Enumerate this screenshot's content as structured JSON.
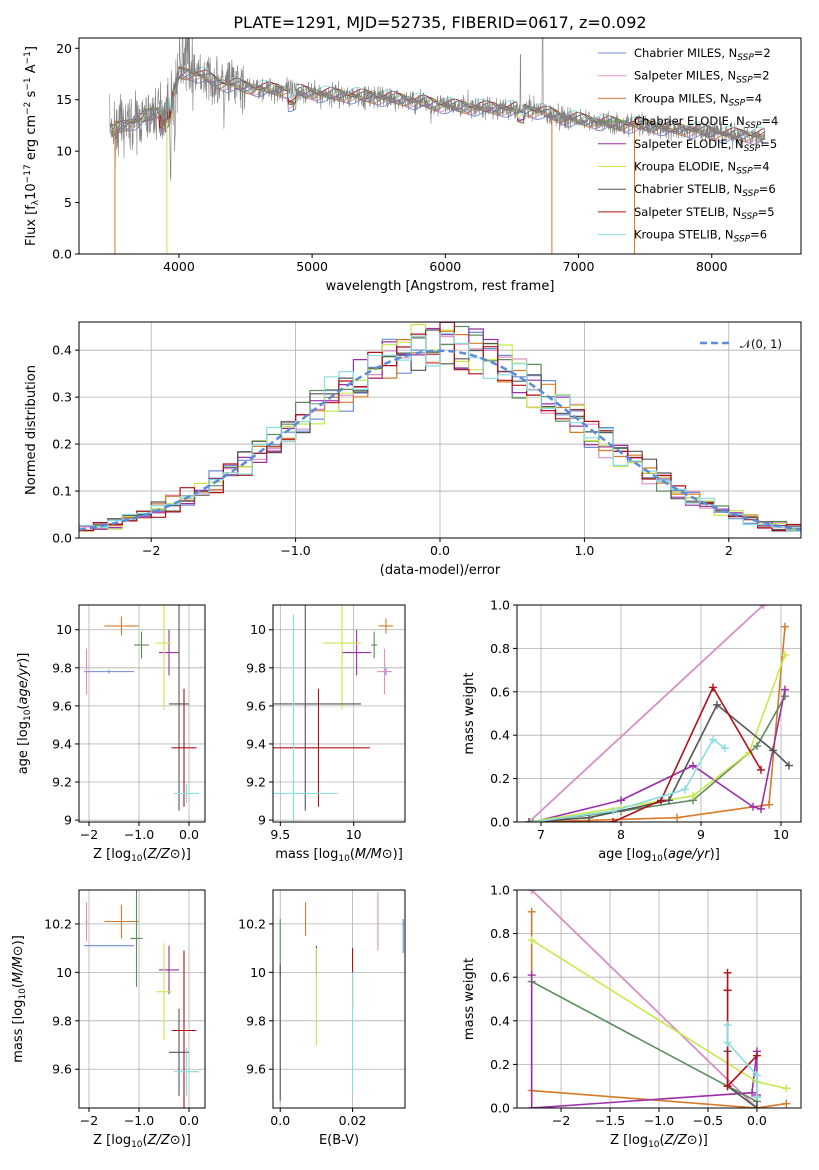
{
  "colors": {
    "Chabrier MILES": "#6b8cd6",
    "Salpeter MILES": "#e08fc2",
    "Kroupa MILES": "#d97a2a",
    "Chabrier ELODIE": "#5b8c5a",
    "Salpeter ELODIE": "#9b30a8",
    "Kroupa ELODIE": "#c8e84a",
    "Chabrier STELIB": "#555555",
    "Salpeter STELIB": "#b01018",
    "Kroupa STELIB": "#88dde0",
    "normal_curve": "#5b8bd8",
    "observed": "#808080"
  },
  "chart_data": [
    {
      "id": "spectrum",
      "type": "line",
      "title": "PLATE=1291, MJD=52735, FIBERID=0617, z=0.092",
      "xlabel": "wavelength [Angstrom, rest frame]",
      "ylabel": "Flux [f_λ10^-17 erg cm^-2 s^-1 A^-1]",
      "xlim": [
        3250,
        8670
      ],
      "ylim": [
        0,
        21
      ],
      "xticks": [
        4000,
        5000,
        6000,
        7000,
        8000
      ],
      "yticks": [
        0,
        5,
        10,
        15,
        20
      ],
      "grid": false,
      "legend_position": "top-right",
      "legend": [
        {
          "model": "Chabrier MILES",
          "text": "Chabrier MILES, N",
          "n": "2"
        },
        {
          "model": "Salpeter MILES",
          "text": "Salpeter MILES, N",
          "n": "2"
        },
        {
          "model": "Kroupa MILES",
          "text": "Kroupa MILES, N",
          "n": "4"
        },
        {
          "model": "Chabrier ELODIE",
          "text": "Chabrier ELODIE, N",
          "n": "4"
        },
        {
          "model": "Salpeter ELODIE",
          "text": "Salpeter ELODIE, N",
          "n": "5"
        },
        {
          "model": "Kroupa ELODIE",
          "text": "Kroupa ELODIE, N",
          "n": "4"
        },
        {
          "model": "Chabrier STELIB",
          "text": "Chabrier STELIB, N",
          "n": "6"
        },
        {
          "model": "Salpeter STELIB",
          "text": "Salpeter STELIB, N",
          "n": "5"
        },
        {
          "model": "Kroupa STELIB",
          "text": "Kroupa STELIB, N",
          "n": "6"
        }
      ],
      "legend_subscript": "SSP",
      "model_continuum": {
        "x": [
          3500,
          3550,
          3600,
          3700,
          3800,
          3900,
          3950,
          4000,
          4100,
          4200,
          4300,
          4400,
          4500,
          4700,
          4900,
          5100,
          5300,
          5500,
          5700,
          5900,
          6100,
          6300,
          6500,
          6700,
          6900,
          7100,
          7300,
          7500,
          7700,
          7900,
          8100,
          8300,
          8400
        ],
        "y": [
          11.8,
          12.3,
          12.6,
          13.0,
          13.6,
          14.2,
          15.0,
          17.5,
          17.6,
          17.2,
          16.6,
          16.5,
          16.2,
          16.0,
          15.8,
          15.5,
          15.4,
          15.2,
          15.0,
          14.6,
          14.3,
          14.2,
          14.1,
          13.9,
          13.2,
          12.9,
          12.6,
          12.5,
          12.2,
          12.0,
          11.6,
          11.5,
          11.5
        ]
      },
      "observed_range": [
        3480,
        8400
      ],
      "dropouts": [
        {
          "model": "Kroupa MILES",
          "x": 3520
        },
        {
          "model": "Kroupa ELODIE",
          "x": 3910
        },
        {
          "model": "Kroupa MILES",
          "x": 6800
        },
        {
          "model": "Kroupa MILES",
          "x": 7420
        }
      ]
    },
    {
      "id": "residuals",
      "type": "histogram",
      "xlabel": "(data-model)/error",
      "ylabel": "Normed distribution",
      "xlim": [
        -2.5,
        2.5
      ],
      "ylim": [
        0,
        0.46
      ],
      "xticks": [
        -2,
        -1,
        0,
        1,
        2
      ],
      "yticks": [
        0.0,
        0.1,
        0.2,
        0.3,
        0.4
      ],
      "grid": true,
      "legend_position": "top-right",
      "legend": [
        "𝒩(0, 1)"
      ],
      "bin_width": 0.1
    },
    {
      "id": "age-vs-Z",
      "type": "errorbar",
      "xlabel": "Z [log10(Z/Z⊙)]",
      "ylabel": "age  [log10(age/yr)]",
      "xlim": [
        -2.2,
        0.32
      ],
      "ylim": [
        8.99,
        10.13
      ],
      "xticks": [
        -2,
        -1,
        0
      ],
      "yticks": [
        9.0,
        9.2,
        9.4,
        9.6,
        9.8,
        10.0
      ],
      "grid": true,
      "points": [
        {
          "model": "Chabrier MILES",
          "x": -1.6,
          "y": 9.78,
          "xerr": 0.5,
          "yerr": 0.01
        },
        {
          "model": "Salpeter MILES",
          "x": -2.05,
          "y": 9.78,
          "xerr": 0.02,
          "yerr": 0.12
        },
        {
          "model": "Kroupa MILES",
          "x": -1.35,
          "y": 10.02,
          "xerr": 0.34,
          "yerr": 0.05
        },
        {
          "model": "Chabrier ELODIE",
          "x": -0.95,
          "y": 9.92,
          "xerr": 0.15,
          "yerr": 0.07
        },
        {
          "model": "Salpeter ELODIE",
          "x": -0.4,
          "y": 9.88,
          "xerr": 0.2,
          "yerr": 0.12
        },
        {
          "model": "Kroupa ELODIE",
          "x": -0.5,
          "y": 9.93,
          "xerr": 0.15,
          "yerr": 0.35
        },
        {
          "model": "Chabrier STELIB",
          "x": -0.2,
          "y": 9.61,
          "xerr": 0.2,
          "yerr": 0.56
        },
        {
          "model": "Salpeter STELIB",
          "x": -0.1,
          "y": 9.38,
          "xerr": 0.25,
          "yerr": 0.31
        },
        {
          "model": "Kroupa STELIB",
          "x": -0.05,
          "y": 9.14,
          "xerr": 0.25,
          "yerr": 0.05
        }
      ]
    },
    {
      "id": "age-vs-mass",
      "type": "errorbar",
      "xlabel": "mass [log10(M/M⊙)]",
      "ylabel": "",
      "xlim": [
        9.45,
        10.35
      ],
      "ylim": [
        8.99,
        10.13
      ],
      "xticks": [
        9.5,
        10.0
      ],
      "yticks": [
        9.0,
        9.2,
        9.4,
        9.6,
        9.8,
        10.0
      ],
      "grid": true,
      "points": [
        {
          "model": "Chabrier MILES",
          "x": 10.22,
          "y": 9.78,
          "xerr": 0.01,
          "yerr": 0.02
        },
        {
          "model": "Salpeter MILES",
          "x": 10.21,
          "y": 9.78,
          "xerr": 0.05,
          "yerr": 0.12
        },
        {
          "model": "Kroupa MILES",
          "x": 10.22,
          "y": 10.02,
          "xerr": 0.05,
          "yerr": 0.04
        },
        {
          "model": "Chabrier ELODIE",
          "x": 10.14,
          "y": 9.92,
          "xerr": 0.02,
          "yerr": 0.07
        },
        {
          "model": "Salpeter ELODIE",
          "x": 10.02,
          "y": 9.88,
          "xerr": 0.1,
          "yerr": 0.12
        },
        {
          "model": "Kroupa ELODIE",
          "x": 9.92,
          "y": 9.93,
          "xerr": 0.13,
          "yerr": 0.35
        },
        {
          "model": "Chabrier STELIB",
          "x": 9.67,
          "y": 9.61,
          "xerr": 0.38,
          "yerr": 0.56
        },
        {
          "model": "Salpeter STELIB",
          "x": 9.76,
          "y": 9.38,
          "xerr": 0.35,
          "yerr": 0.31
        },
        {
          "model": "Kroupa STELIB",
          "x": 9.59,
          "y": 9.14,
          "xerr": 0.3,
          "yerr": 0.94
        }
      ]
    },
    {
      "id": "weight-vs-age",
      "type": "line",
      "xlabel": "age  [log10(age/yr)]",
      "ylabel": "mass weight",
      "xlim": [
        6.7,
        10.25
      ],
      "ylim": [
        0,
        1
      ],
      "xticks": [
        7,
        8,
        9,
        10
      ],
      "yticks": [
        0.0,
        0.2,
        0.4,
        0.6,
        0.8,
        1.0
      ],
      "grid": true,
      "series": [
        {
          "model": "Chabrier MILES",
          "age": [
            6.85,
            9.78
          ],
          "weight": [
            0.0,
            1.0
          ]
        },
        {
          "model": "Salpeter MILES",
          "age": [
            6.85,
            9.78
          ],
          "weight": [
            0.0,
            1.0
          ]
        },
        {
          "model": "Kroupa MILES",
          "age": [
            6.9,
            8.7,
            9.85,
            10.05
          ],
          "weight": [
            0.0,
            0.02,
            0.08,
            0.9
          ]
        },
        {
          "model": "Chabrier ELODIE",
          "age": [
            6.9,
            8.0,
            8.9,
            9.7,
            10.05
          ],
          "weight": [
            0.0,
            0.05,
            0.1,
            0.35,
            0.58
          ]
        },
        {
          "model": "Salpeter ELODIE",
          "age": [
            6.9,
            8.0,
            8.9,
            9.65,
            9.75,
            10.05
          ],
          "weight": [
            0.0,
            0.1,
            0.26,
            0.07,
            0.06,
            0.61
          ]
        },
        {
          "model": "Kroupa ELODIE",
          "age": [
            6.85,
            8.9,
            9.6,
            10.05
          ],
          "weight": [
            0.0,
            0.12,
            0.32,
            0.77
          ]
        },
        {
          "model": "Chabrier STELIB",
          "age": [
            6.85,
            7.6,
            8.6,
            9.2,
            9.9,
            10.1
          ],
          "weight": [
            0.0,
            0.02,
            0.1,
            0.54,
            0.33,
            0.26
          ]
        },
        {
          "model": "Salpeter STELIB",
          "age": [
            6.9,
            7.9,
            8.5,
            9.15,
            9.75
          ],
          "weight": [
            0.0,
            0.0,
            0.1,
            0.62,
            0.24
          ]
        },
        {
          "model": "Kroupa STELIB",
          "age": [
            6.9,
            7.9,
            8.8,
            9.15,
            9.3
          ],
          "weight": [
            0.0,
            0.05,
            0.15,
            0.38,
            0.34
          ]
        }
      ]
    },
    {
      "id": "mass-vs-Z",
      "type": "errorbar",
      "xlabel": "Z [log10(Z/Z⊙)]",
      "ylabel": "mass [log10(M/M⊙)]",
      "xlim": [
        -2.2,
        0.32
      ],
      "ylim": [
        9.44,
        10.34
      ],
      "xticks": [
        -2,
        -1,
        0
      ],
      "yticks": [
        9.6,
        9.8,
        10.0,
        10.2
      ],
      "grid": true,
      "points": [
        {
          "model": "Chabrier MILES",
          "x": -1.6,
          "y": 10.11,
          "xerr": 0.5,
          "yerr": 0.0
        },
        {
          "model": "Salpeter MILES",
          "x": -2.05,
          "y": 10.21,
          "xerr": 0.02,
          "yerr": 0.08
        },
        {
          "model": "Kroupa MILES",
          "x": -1.35,
          "y": 10.21,
          "xerr": 0.34,
          "yerr": 0.07
        },
        {
          "model": "Chabrier ELODIE",
          "x": -1.05,
          "y": 10.14,
          "xerr": 0.12,
          "yerr": 0.2
        },
        {
          "model": "Salpeter ELODIE",
          "x": -0.4,
          "y": 10.01,
          "xerr": 0.2,
          "yerr": 0.1
        },
        {
          "model": "Kroupa ELODIE",
          "x": -0.5,
          "y": 9.92,
          "xerr": 0.15,
          "yerr": 0.2
        },
        {
          "model": "Chabrier STELIB",
          "x": -0.2,
          "y": 9.67,
          "xerr": 0.2,
          "yerr": 0.18
        },
        {
          "model": "Salpeter STELIB",
          "x": -0.1,
          "y": 9.76,
          "xerr": 0.25,
          "yerr": 0.33
        },
        {
          "model": "Kroupa STELIB",
          "x": -0.05,
          "y": 9.59,
          "xerr": 0.25,
          "yerr": 0.1
        }
      ]
    },
    {
      "id": "mass-vs-ebv",
      "type": "errorbar",
      "xlabel": "E(B-V)",
      "ylabel": "",
      "xlim": [
        -0.002,
        0.0345
      ],
      "ylim": [
        9.44,
        10.34
      ],
      "xticks": [
        0.0,
        0.02
      ],
      "yticks": [
        9.6,
        9.8,
        10.0,
        10.2
      ],
      "grid": true,
      "points": [
        {
          "model": "Chabrier MILES",
          "x": 0.034,
          "y": 10.15,
          "xerr": 0,
          "yerr": 0.07
        },
        {
          "model": "Salpeter MILES",
          "x": 0.027,
          "y": 10.21,
          "xerr": 0,
          "yerr": 0.12
        },
        {
          "model": "Kroupa MILES",
          "x": 0.007,
          "y": 10.22,
          "xerr": 0,
          "yerr": 0.07
        },
        {
          "model": "Chabrier ELODIE",
          "x": 0.0,
          "y": 10.1,
          "xerr": 0,
          "yerr": 0.12
        },
        {
          "model": "Salpeter ELODIE",
          "x": 0.01,
          "y": 10.05,
          "xerr": 0,
          "yerr": 0.06
        },
        {
          "model": "Kroupa ELODIE",
          "x": 0.01,
          "y": 9.9,
          "xerr": 0,
          "yerr": 0.2
        },
        {
          "model": "Chabrier STELIB",
          "x": 0.0,
          "y": 9.75,
          "xerr": 0,
          "yerr": 0.28
        },
        {
          "model": "Salpeter STELIB",
          "x": 0.02,
          "y": 9.98,
          "xerr": 0,
          "yerr": 0.12
        },
        {
          "model": "Kroupa STELIB",
          "x": 0.02,
          "y": 9.75,
          "xerr": 0,
          "yerr": 0.25
        }
      ]
    },
    {
      "id": "weight-vs-Z",
      "type": "line",
      "xlabel": "Z [log10(Z/Z⊙)]",
      "ylabel": "mass weight",
      "xlim": [
        -2.45,
        0.45
      ],
      "ylim": [
        0,
        1
      ],
      "xticks": [
        -2.0,
        -1.5,
        -1.0,
        -0.5,
        0.0
      ],
      "yticks": [
        0.0,
        0.2,
        0.4,
        0.6,
        0.8,
        1.0
      ],
      "grid": true,
      "series": [
        {
          "model": "Chabrier MILES",
          "z": [
            -2.3,
            0.0
          ],
          "weight": [
            1.0,
            0.0
          ]
        },
        {
          "model": "Salpeter MILES",
          "z": [
            -2.3,
            0.0
          ],
          "weight": [
            1.0,
            0.0
          ]
        },
        {
          "model": "Kroupa MILES",
          "z": [
            -2.3,
            -2.3,
            0.0,
            0.3
          ],
          "weight": [
            0.9,
            0.08,
            0.0,
            0.02
          ]
        },
        {
          "model": "Chabrier ELODIE",
          "z": [
            -2.3,
            -0.3,
            0.0
          ],
          "weight": [
            0.58,
            0.1,
            0.03
          ]
        },
        {
          "model": "Salpeter ELODIE",
          "z": [
            -2.3,
            -2.3,
            -0.05,
            0.0,
            0.0
          ],
          "weight": [
            0.61,
            0.0,
            0.07,
            0.26,
            0.06
          ]
        },
        {
          "model": "Kroupa ELODIE",
          "z": [
            -2.3,
            0.0,
            0.3
          ],
          "weight": [
            0.77,
            0.12,
            0.09
          ]
        },
        {
          "model": "Chabrier STELIB",
          "z": [
            -0.3,
            -0.3,
            0.0,
            0.0
          ],
          "weight": [
            0.26,
            0.1,
            0.0,
            0.05
          ]
        },
        {
          "model": "Salpeter STELIB",
          "z": [
            -0.3,
            -0.3,
            -0.3,
            0.0
          ],
          "weight": [
            0.62,
            0.54,
            0.1,
            0.24
          ]
        },
        {
          "model": "Kroupa STELIB",
          "z": [
            -0.3,
            -0.3,
            0.0,
            0.0
          ],
          "weight": [
            0.38,
            0.3,
            0.15,
            0.05
          ]
        }
      ]
    }
  ]
}
